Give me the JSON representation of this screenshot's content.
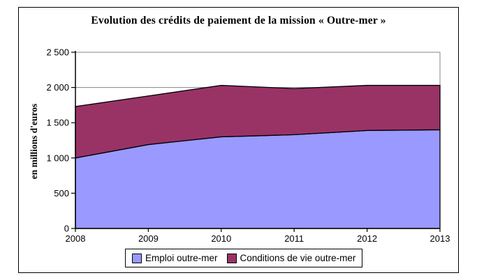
{
  "title": "Evolution des crédits de paiement de la mission « Outre-mer »",
  "y_axis_label": "en millions d'euros",
  "legend": {
    "entries": [
      {
        "label": "Emploi outre-mer",
        "color": "#9999FF"
      },
      {
        "label": "Conditions de vie outre-mer",
        "color": "#993366"
      }
    ]
  },
  "chart_data": {
    "type": "area",
    "stacked": true,
    "title": "Evolution des crédits de paiement de la mission « Outre-mer »",
    "ylabel": "en millions d'euros",
    "xlabel": "",
    "categories": [
      "2008",
      "2009",
      "2010",
      "2011",
      "2012",
      "2013"
    ],
    "series": [
      {
        "name": "Emploi outre-mer",
        "color": "#9999FF",
        "values": [
          1000,
          1190,
          1300,
          1330,
          1390,
          1400
        ]
      },
      {
        "name": "Conditions de vie outre-mer",
        "color": "#993366",
        "values": [
          730,
          690,
          730,
          655,
          640,
          630
        ]
      }
    ],
    "stacked_totals": [
      1730,
      1880,
      2030,
      1985,
      2030,
      2030
    ],
    "ylim": [
      0,
      2500
    ],
    "ytick_interval": 500,
    "ytick_labels": [
      "0",
      "500",
      "1 000",
      "1 500",
      "2 000",
      "2 500"
    ],
    "grid": "horizontal-major",
    "gridline_color": "#848484",
    "outline_color": "#000000",
    "legend_position": "bottom"
  }
}
